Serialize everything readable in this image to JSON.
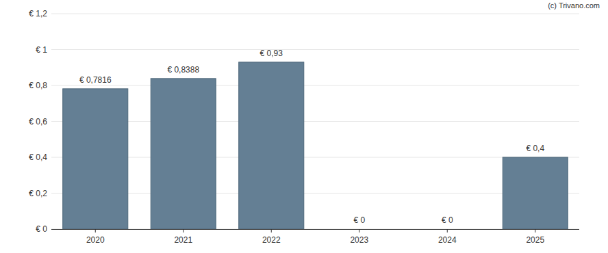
{
  "chart_data": {
    "type": "bar",
    "annotations": [
      "(c) Trivano.com"
    ],
    "categories": [
      "2020",
      "2021",
      "2022",
      "2023",
      "2024",
      "2025"
    ],
    "values": [
      0.7816,
      0.8388,
      0.93,
      0,
      0,
      0.4
    ],
    "value_labels": [
      "€ 0,7816",
      "€ 0,8388",
      "€ 0,93",
      "€ 0",
      "€ 0",
      "€ 0,4"
    ],
    "data_labels": true,
    "color": "#647f94",
    "ylim": [
      0,
      1.2
    ],
    "yticks": [
      {
        "value": 0,
        "label": "€ 0"
      },
      {
        "value": 0.2,
        "label": "€ 0,2"
      },
      {
        "value": 0.4,
        "label": "€ 0,4"
      },
      {
        "value": 0.6,
        "label": "€ 0,6"
      },
      {
        "value": 0.8,
        "label": "€ 0,8"
      },
      {
        "value": 1,
        "label": "€ 1"
      },
      {
        "value": 1.2,
        "label": "€ 1,2"
      }
    ],
    "grid": true
  }
}
